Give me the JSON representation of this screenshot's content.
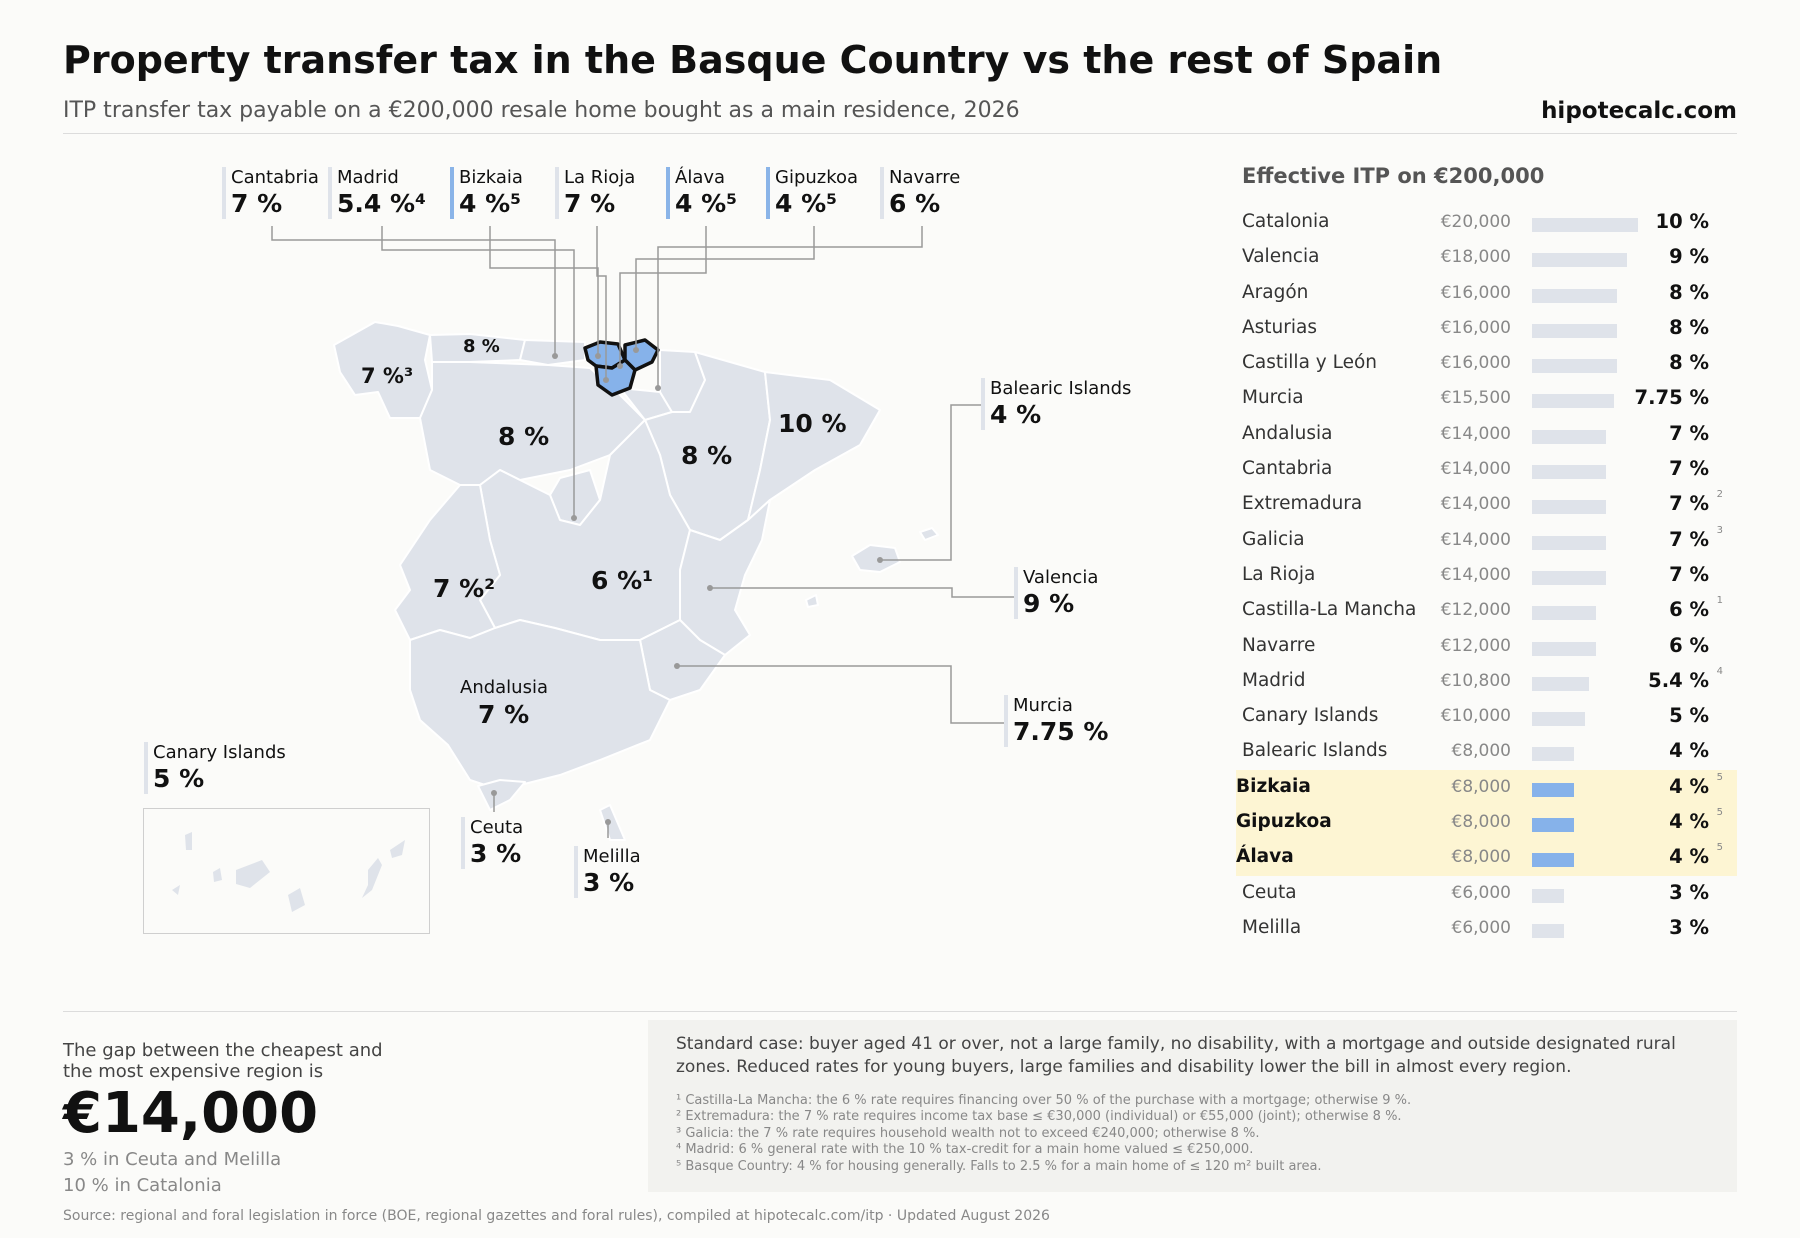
{
  "header": {
    "title": "Property transfer tax in the Basque Country vs the rest of Spain",
    "subtitle": "ITP transfer tax payable on a €200,000 resale home bought as a main residence, 2026",
    "brand": "hipotecalc.com"
  },
  "colors": {
    "basque": "#86b2ea",
    "region": "#dfe3ea",
    "highlight_row": "#fdf5d3",
    "leader": "#999999"
  },
  "map": {
    "top_callouts": [
      {
        "name": "Cantabria",
        "rate": "7 %",
        "basque": false
      },
      {
        "name": "Madrid",
        "rate": "5.4 %⁴",
        "basque": false
      },
      {
        "name": "Bizkaia",
        "rate": "4 %⁵",
        "basque": true
      },
      {
        "name": "La Rioja",
        "rate": "7 %",
        "basque": false
      },
      {
        "name": "Álava",
        "rate": "4 %⁵",
        "basque": true
      },
      {
        "name": "Gipuzkoa",
        "rate": "4 %⁵",
        "basque": true
      },
      {
        "name": "Navarre",
        "rate": "6 %",
        "basque": false
      }
    ],
    "side_callouts": [
      {
        "name": "Balearic Islands",
        "rate": "4 %"
      },
      {
        "name": "Valencia",
        "rate": "9 %"
      },
      {
        "name": "Murcia",
        "rate": "7.75 %"
      }
    ],
    "bottom_callouts": [
      {
        "name": "Canary Islands",
        "rate": "5 %"
      },
      {
        "name": "Ceuta",
        "rate": "3 %"
      },
      {
        "name": "Melilla",
        "rate": "3 %"
      }
    ],
    "in_map_labels": {
      "asturias": "8 %",
      "galicia": "7 %³",
      "castilla_leon": "8 %",
      "aragon": "8 %",
      "catalonia": "10 %",
      "extremadura": "7 %²",
      "castilla_la_mancha": "6 %¹",
      "andalusia_name": "Andalusia",
      "andalusia_rate": "7 %"
    }
  },
  "chart_data": {
    "type": "bar",
    "title": "Effective ITP on €200,000",
    "categories": [
      "Catalonia",
      "Valencia",
      "Aragón",
      "Asturias",
      "Castilla y León",
      "Murcia",
      "Andalusia",
      "Cantabria",
      "Extremadura",
      "Galicia",
      "La Rioja",
      "Castilla-La Mancha",
      "Navarre",
      "Madrid",
      "Canary Islands",
      "Balearic Islands",
      "Bizkaia",
      "Gipuzkoa",
      "Álava",
      "Ceuta",
      "Melilla"
    ],
    "values": [
      20000,
      18000,
      16000,
      16000,
      16000,
      15500,
      14000,
      14000,
      14000,
      14000,
      14000,
      12000,
      12000,
      10800,
      10000,
      8000,
      8000,
      8000,
      8000,
      6000,
      6000
    ],
    "rows": [
      {
        "name": "Catalonia",
        "amount": "€20,000",
        "value": 20000,
        "rate": "10 %",
        "note": "",
        "highlight": false
      },
      {
        "name": "Valencia",
        "amount": "€18,000",
        "value": 18000,
        "rate": "9 %",
        "note": "",
        "highlight": false
      },
      {
        "name": "Aragón",
        "amount": "€16,000",
        "value": 16000,
        "rate": "8 %",
        "note": "",
        "highlight": false
      },
      {
        "name": "Asturias",
        "amount": "€16,000",
        "value": 16000,
        "rate": "8 %",
        "note": "",
        "highlight": false
      },
      {
        "name": "Castilla y León",
        "amount": "€16,000",
        "value": 16000,
        "rate": "8 %",
        "note": "",
        "highlight": false
      },
      {
        "name": "Murcia",
        "amount": "€15,500",
        "value": 15500,
        "rate": "7.75 %",
        "note": "",
        "highlight": false
      },
      {
        "name": "Andalusia",
        "amount": "€14,000",
        "value": 14000,
        "rate": "7 %",
        "note": "",
        "highlight": false
      },
      {
        "name": "Cantabria",
        "amount": "€14,000",
        "value": 14000,
        "rate": "7 %",
        "note": "",
        "highlight": false
      },
      {
        "name": "Extremadura",
        "amount": "€14,000",
        "value": 14000,
        "rate": "7 %",
        "note": "2",
        "highlight": false
      },
      {
        "name": "Galicia",
        "amount": "€14,000",
        "value": 14000,
        "rate": "7 %",
        "note": "3",
        "highlight": false
      },
      {
        "name": "La Rioja",
        "amount": "€14,000",
        "value": 14000,
        "rate": "7 %",
        "note": "",
        "highlight": false
      },
      {
        "name": "Castilla-La Mancha",
        "amount": "€12,000",
        "value": 12000,
        "rate": "6 %",
        "note": "1",
        "highlight": false
      },
      {
        "name": "Navarre",
        "amount": "€12,000",
        "value": 12000,
        "rate": "6 %",
        "note": "",
        "highlight": false
      },
      {
        "name": "Madrid",
        "amount": "€10,800",
        "value": 10800,
        "rate": "5.4 %",
        "note": "4",
        "highlight": false
      },
      {
        "name": "Canary Islands",
        "amount": "€10,000",
        "value": 10000,
        "rate": "5 %",
        "note": "",
        "highlight": false
      },
      {
        "name": "Balearic Islands",
        "amount": "€8,000",
        "value": 8000,
        "rate": "4 %",
        "note": "",
        "highlight": false
      },
      {
        "name": "Bizkaia",
        "amount": "€8,000",
        "value": 8000,
        "rate": "4 %",
        "note": "5",
        "highlight": true
      },
      {
        "name": "Gipuzkoa",
        "amount": "€8,000",
        "value": 8000,
        "rate": "4 %",
        "note": "5",
        "highlight": true
      },
      {
        "name": "Álava",
        "amount": "€8,000",
        "value": 8000,
        "rate": "4 %",
        "note": "5",
        "highlight": true
      },
      {
        "name": "Ceuta",
        "amount": "€6,000",
        "value": 6000,
        "rate": "3 %",
        "note": "",
        "highlight": false
      },
      {
        "name": "Melilla",
        "amount": "€6,000",
        "value": 6000,
        "rate": "3 %",
        "note": "",
        "highlight": false
      }
    ],
    "xlim": [
      0,
      20000
    ]
  },
  "summary": {
    "gap_label": "The gap between the cheapest and the most expensive region is",
    "gap_value": "€14,000",
    "low": "3 % in Ceuta and Melilla",
    "high": "10 % in Catalonia"
  },
  "notes": {
    "standard_case": "Standard case: buyer aged 41 or over, not a large family, no disability, with a mortgage and outside designated rural zones. Reduced rates for young buyers, large families and disability lower the bill in almost every region.",
    "footnotes": [
      "¹ Castilla-La Mancha: the 6 % rate requires financing over 50 % of the purchase with a mortgage; otherwise 9 %.",
      "² Extremadura: the 7 % rate requires income tax base ≤ €30,000 (individual) or €55,000 (joint); otherwise 8 %.",
      "³ Galicia: the 7 % rate requires household wealth not to exceed €240,000; otherwise 8 %.",
      "⁴ Madrid: 6 % general rate with the 10 % tax-credit for a main home valued ≤ €250,000.",
      "⁵ Basque Country: 4 % for housing generally. Falls to 2.5 % for a main home of ≤ 120 m² built area."
    ],
    "source": "Source: regional and foral legislation in force (BOE, regional gazettes and foral rules), compiled at hipotecalc.com/itp · Updated August 2026"
  }
}
